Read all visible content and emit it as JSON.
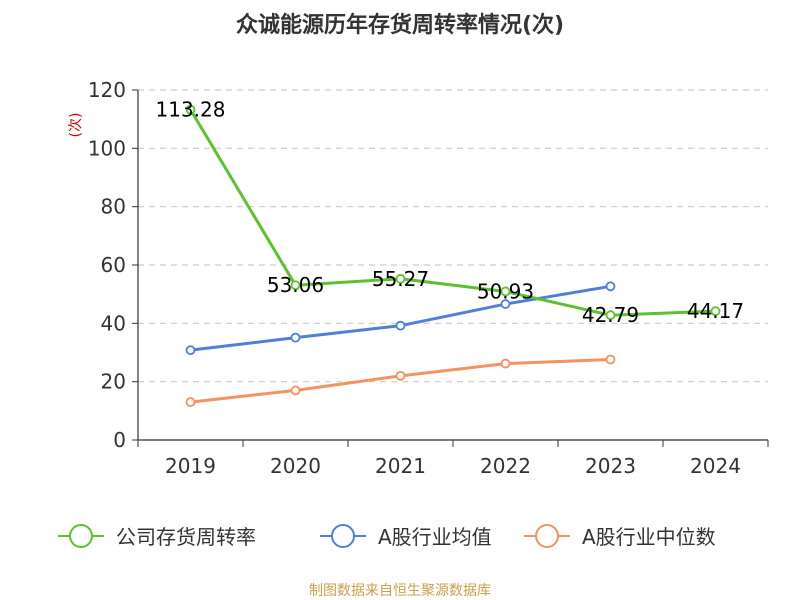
{
  "chart_data": {
    "type": "line",
    "title": "众诚能源历年存货周转率情况(次)",
    "ylabel": "(次)",
    "xlabel": "",
    "categories": [
      "2019",
      "2020",
      "2021",
      "2022",
      "2023",
      "2024"
    ],
    "ylim": [
      0,
      120
    ],
    "yticks": [
      0,
      20,
      40,
      60,
      80,
      100,
      120
    ],
    "grid": true,
    "legend_position": "bottom",
    "series": [
      {
        "name": "公司存货周转率",
        "color": "#5bc229",
        "values": [
          113.28,
          53.06,
          55.27,
          50.93,
          42.79,
          44.17
        ],
        "labels": [
          "113.28",
          "53.06",
          "55.27",
          "50.93",
          "42.79",
          "44.17"
        ]
      },
      {
        "name": "A股行业均值",
        "color": "#4f7fd9",
        "values": [
          30.8,
          35.1,
          39.2,
          46.6,
          52.7,
          null
        ]
      },
      {
        "name": "A股行业中位数",
        "color": "#f5925e",
        "values": [
          13.0,
          17.0,
          22.0,
          26.2,
          27.6,
          null
        ]
      }
    ]
  },
  "source_text": "制图数据来自恒生聚源数据库"
}
